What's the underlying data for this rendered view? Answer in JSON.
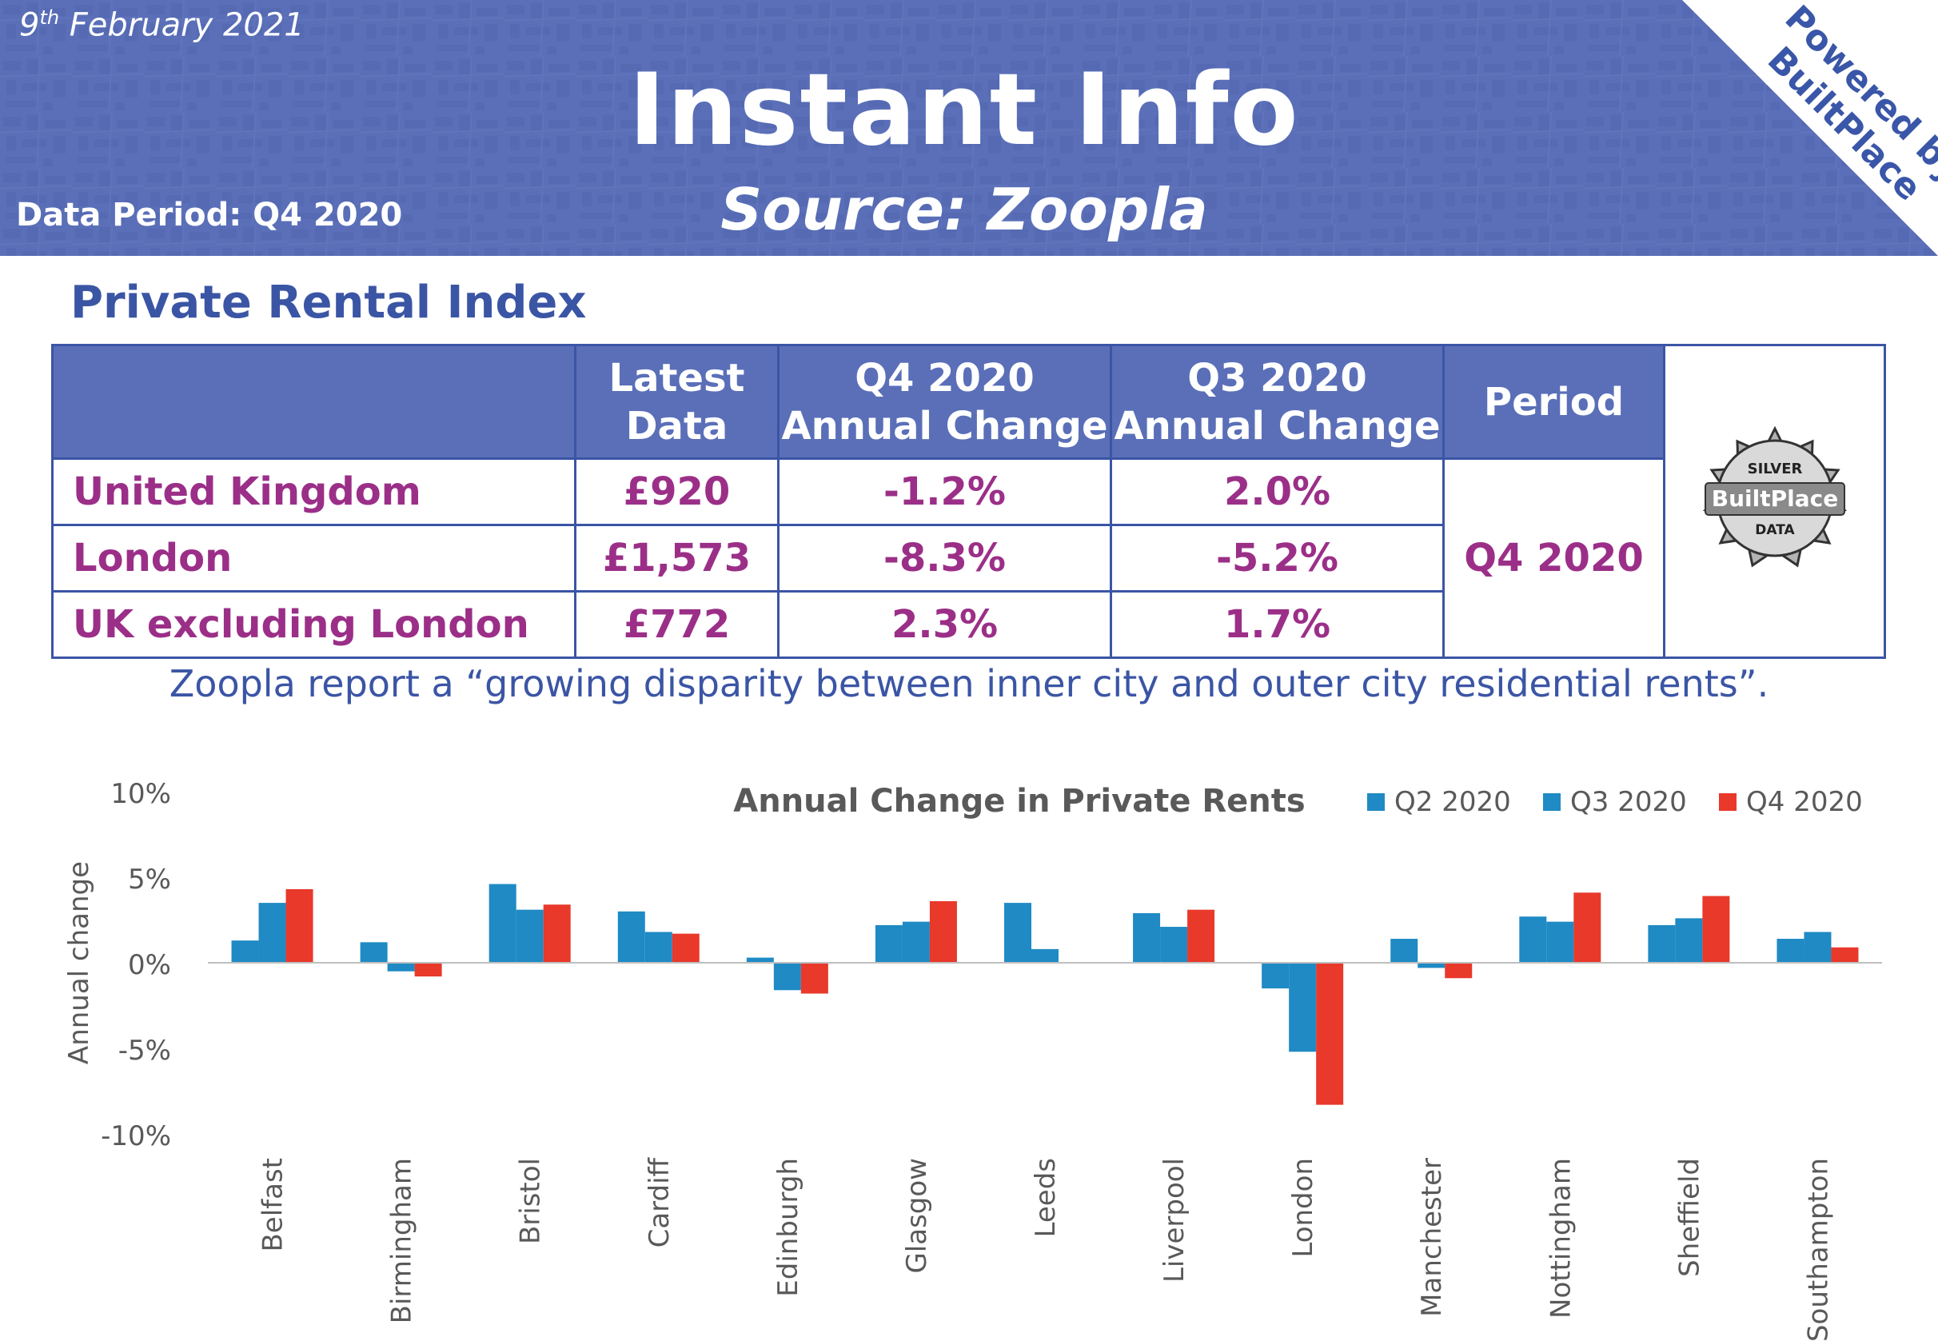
{
  "header": {
    "date_day": "9",
    "date_suffix": "th",
    "date_rest": " February 2021",
    "title": "Instant Info",
    "source": "Source: Zoopla",
    "data_period": "Data Period: Q4 2020",
    "powered_line1": "Powered by",
    "powered_line2": "BuiltPlace",
    "colors": {
      "banner": "#5a6fb8",
      "corner": "#ffffff"
    }
  },
  "section": {
    "title": "Private Rental Index"
  },
  "table": {
    "headers": [
      "",
      "Latest Data",
      "Q4 2020 Annual Change",
      "Q3 2020 Annual Change",
      "Period"
    ],
    "header_lines": [
      [
        ""
      ],
      [
        "Latest",
        "Data"
      ],
      [
        "Q4 2020",
        "Annual Change"
      ],
      [
        "Q3 2020",
        "Annual Change"
      ],
      [
        "Period"
      ]
    ],
    "rows": [
      [
        "United Kingdom",
        "£920",
        "-1.2%",
        "2.0%"
      ],
      [
        "London",
        "£1,573",
        "-8.3%",
        "-5.2%"
      ],
      [
        "UK excluding London",
        "£772",
        "2.3%",
        "1.7%"
      ]
    ],
    "period_value": "Q4 2020",
    "badge": {
      "top": "SILVER",
      "middle": "BuiltPlace",
      "bottom": "DATA"
    }
  },
  "quote": "Zoopla report a “growing disparity between inner city and outer city residential rents”.",
  "chart_data": {
    "type": "bar",
    "title": "Annual Change in Private Rents",
    "ylabel": "Annual change",
    "xlabel": "",
    "ylim": [
      -10,
      10
    ],
    "yticks": [
      10,
      5,
      0,
      -5,
      -10
    ],
    "ytick_labels": [
      "10%",
      "5%",
      "0%",
      "-5%",
      "-10%"
    ],
    "legend_position": "top-right",
    "categories": [
      "Belfast",
      "Birmingham",
      "Bristol",
      "Cardiff",
      "Edinburgh",
      "Glasgow",
      "Leeds",
      "Liverpool",
      "London",
      "Manchester",
      "Nottingham",
      "Sheffield",
      "Southampton"
    ],
    "series": [
      {
        "name": "Q2 2020",
        "color": "#1f8ac4",
        "values": [
          1.3,
          1.2,
          4.6,
          3.0,
          0.3,
          2.2,
          3.5,
          2.9,
          -1.5,
          1.4,
          2.7,
          2.2,
          1.4
        ]
      },
      {
        "name": "Q3 2020",
        "color": "#1f8ac4",
        "values": [
          3.5,
          -0.5,
          3.1,
          1.8,
          -1.6,
          2.4,
          0.8,
          2.1,
          -5.2,
          -0.3,
          2.4,
          2.6,
          1.8
        ]
      },
      {
        "name": "Q4 2020",
        "color": "#e8392b",
        "values": [
          4.3,
          -0.8,
          3.4,
          1.7,
          -1.8,
          3.6,
          0.0,
          3.1,
          -8.3,
          -0.9,
          4.1,
          3.9,
          0.9
        ]
      }
    ],
    "grid": false
  }
}
